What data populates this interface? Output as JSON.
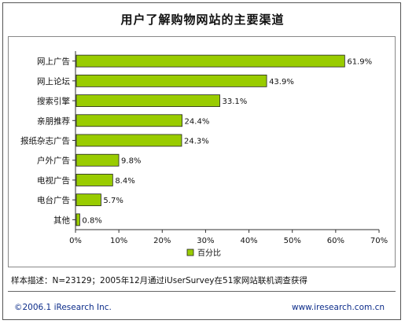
{
  "chart_data": {
    "type": "bar",
    "orientation": "horizontal",
    "title": "用户了解购物网站的主要渠道",
    "categories": [
      "网上广告",
      "网上论坛",
      "搜索引擎",
      "亲朋推荐",
      "报纸杂志广告",
      "户外广告",
      "电视广告",
      "电台广告",
      "其他"
    ],
    "series": [
      {
        "name": "百分比",
        "values": [
          61.9,
          43.9,
          33.1,
          24.4,
          24.3,
          9.8,
          8.4,
          5.7,
          0.8
        ],
        "data_labels": [
          "61.9%",
          "43.9%",
          "33.1%",
          "24.4%",
          "24.3%",
          "9.8%",
          "8.4%",
          "5.7%",
          "0.8%"
        ]
      }
    ],
    "xlim": [
      0,
      70
    ],
    "x_ticks": [
      0,
      10,
      20,
      30,
      40,
      50,
      60,
      70
    ],
    "x_tick_labels": [
      "0%",
      "10%",
      "20%",
      "30%",
      "40%",
      "50%",
      "60%",
      "70%"
    ],
    "grid": false,
    "legend_position": "bottom",
    "bar_color": "#99cc00"
  },
  "note": "样本描述：N=23129；2005年12月通过iUserSurvey在51家网站联机调查获得",
  "footer": {
    "copyright": "©2006.1 iResearch Inc.",
    "website": "www.iresearch.com.cn"
  }
}
